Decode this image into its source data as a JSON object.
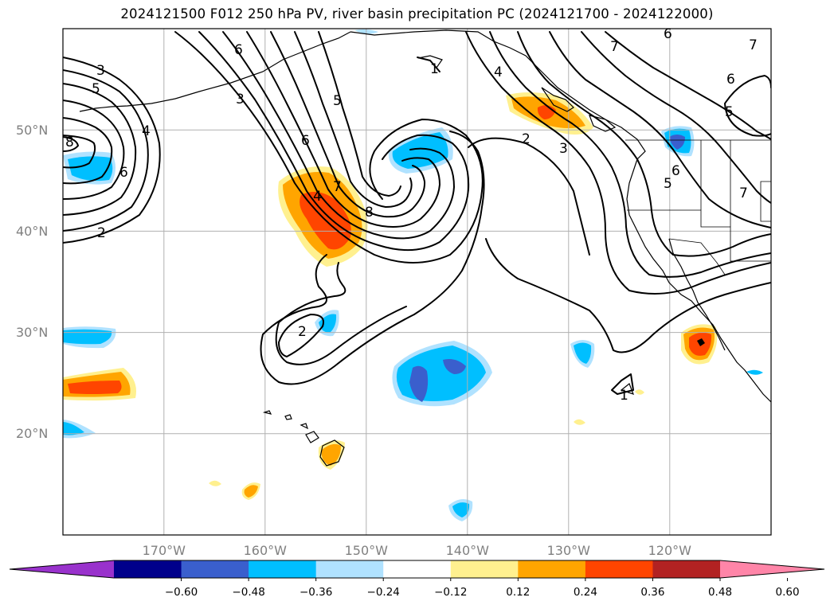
{
  "title": "2024121500 F012 250 hPa PV, river basin precipitation PC (2024121700 - 2024122000)",
  "map": {
    "lon_min": -180,
    "lon_max": -110,
    "lat_min": 10,
    "lat_max": 60,
    "projection": "PlateCarree",
    "gridlines": true,
    "lat_ticks": [
      {
        "value": 20,
        "label": "20°N"
      },
      {
        "value": 30,
        "label": "30°N"
      },
      {
        "value": 40,
        "label": "40°N"
      },
      {
        "value": 50,
        "label": "50°N"
      }
    ],
    "lon_ticks": [
      {
        "value": -170,
        "label": "170°W"
      },
      {
        "value": -160,
        "label": "160°W"
      },
      {
        "value": -150,
        "label": "150°W"
      },
      {
        "value": -140,
        "label": "140°W"
      },
      {
        "value": -130,
        "label": "130°W"
      },
      {
        "value": -120,
        "label": "120°W"
      }
    ],
    "pv_contour_labels": [
      "1",
      "2",
      "3",
      "4",
      "5",
      "6",
      "7",
      "8"
    ]
  },
  "colorbar": {
    "extend": "both",
    "levels": [
      -0.72,
      -0.6,
      -0.48,
      -0.36,
      -0.24,
      -0.12,
      0.12,
      0.24,
      0.36,
      0.48,
      0.6,
      0.72
    ],
    "colors": [
      "#9932cc",
      "#00008b",
      "#3a5fcd",
      "#00bfff",
      "#b0e2ff",
      "#ffffff",
      "#fff08f",
      "#ffa500",
      "#ff4500",
      "#b22222",
      "#ff85a8"
    ],
    "under_color": "#9932cc",
    "over_color": "#ff85a8",
    "tick_labels": [
      "−0.60",
      "−0.48",
      "−0.36",
      "−0.24",
      "−0.12",
      "0.12",
      "0.24",
      "0.36",
      "0.48",
      "0.60"
    ]
  }
}
